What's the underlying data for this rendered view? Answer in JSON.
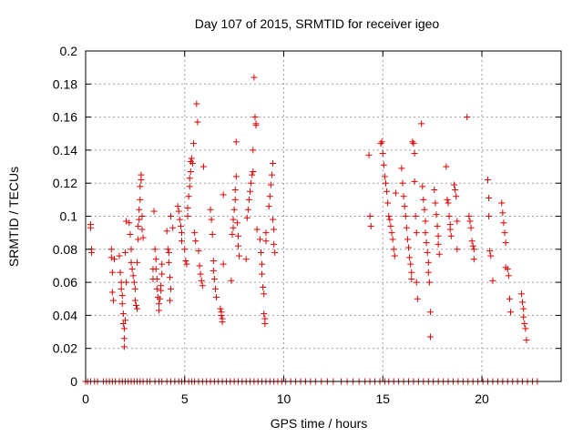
{
  "chart_data": {
    "type": "scatter",
    "title": "Day 107 of 2015, SRMTID for receiver igeo",
    "xlabel": "GPS time / hours",
    "ylabel": "SRMTID / TECUs",
    "xlim": [
      0,
      24
    ],
    "ylim": [
      0,
      0.2
    ],
    "x_ticks": [
      0,
      5,
      10,
      15,
      20
    ],
    "x_tick_labels": [
      "0",
      "5",
      "10",
      "15",
      "20"
    ],
    "y_ticks": [
      0,
      0.02,
      0.04,
      0.06,
      0.08,
      0.1,
      0.12,
      0.14,
      0.16,
      0.18,
      0.2
    ],
    "y_tick_labels": [
      "0",
      "0.02",
      "0.04",
      "0.06",
      "0.08",
      "0.1",
      "0.12",
      "0.14",
      "0.16",
      "0.18",
      "0.2"
    ],
    "grid": true,
    "marker": "+",
    "color": "#dd0000",
    "series": [
      {
        "name": "SRMTID",
        "points": [
          [
            0.25,
            0.095
          ],
          [
            0.25,
            0.093
          ],
          [
            0.3,
            0.08
          ],
          [
            0.3,
            0.078
          ],
          [
            1.3,
            0.08
          ],
          [
            1.3,
            0.075
          ],
          [
            1.35,
            0.066
          ],
          [
            1.35,
            0.054
          ],
          [
            1.4,
            0.049
          ],
          [
            1.45,
            0.074
          ],
          [
            1.7,
            0.076
          ],
          [
            1.75,
            0.066
          ],
          [
            1.8,
            0.06
          ],
          [
            1.8,
            0.056
          ],
          [
            1.85,
            0.052
          ],
          [
            1.85,
            0.047
          ],
          [
            1.9,
            0.041
          ],
          [
            1.9,
            0.035
          ],
          [
            1.95,
            0.032
          ],
          [
            1.95,
            0.026
          ],
          [
            1.95,
            0.021
          ],
          [
            2.0,
            0.037
          ],
          [
            2.05,
            0.06
          ],
          [
            2.0,
            0.078
          ],
          [
            2.05,
            0.097
          ],
          [
            2.2,
            0.096
          ],
          [
            2.25,
            0.089
          ],
          [
            2.3,
            0.08
          ],
          [
            2.3,
            0.072
          ],
          [
            2.35,
            0.068
          ],
          [
            2.4,
            0.064
          ],
          [
            2.45,
            0.06
          ],
          [
            2.5,
            0.056
          ],
          [
            2.5,
            0.049
          ],
          [
            2.55,
            0.046
          ],
          [
            2.6,
            0.044
          ],
          [
            2.6,
            0.072
          ],
          [
            2.65,
            0.086
          ],
          [
            2.65,
            0.094
          ],
          [
            2.7,
            0.098
          ],
          [
            2.7,
            0.104
          ],
          [
            2.75,
            0.11
          ],
          [
            2.75,
            0.118
          ],
          [
            2.8,
            0.125
          ],
          [
            2.8,
            0.122
          ],
          [
            2.85,
            0.1
          ],
          [
            2.85,
            0.092
          ],
          [
            2.9,
            0.087
          ],
          [
            3.4,
            0.062
          ],
          [
            3.4,
            0.068
          ],
          [
            3.45,
            0.103
          ],
          [
            3.5,
            0.08
          ],
          [
            3.55,
            0.074
          ],
          [
            3.55,
            0.068
          ],
          [
            3.6,
            0.062
          ],
          [
            3.6,
            0.056
          ],
          [
            3.65,
            0.051
          ],
          [
            3.7,
            0.047
          ],
          [
            3.7,
            0.043
          ],
          [
            3.75,
            0.05
          ],
          [
            3.8,
            0.055
          ],
          [
            3.8,
            0.058
          ],
          [
            3.85,
            0.071
          ],
          [
            3.85,
            0.065
          ],
          [
            4.1,
            0.091
          ],
          [
            4.15,
            0.08
          ],
          [
            4.2,
            0.078
          ],
          [
            4.2,
            0.072
          ],
          [
            4.25,
            0.063
          ],
          [
            4.3,
            0.056
          ],
          [
            4.25,
            0.049
          ],
          [
            4.3,
            0.1
          ],
          [
            4.4,
            0.093
          ],
          [
            4.65,
            0.106
          ],
          [
            4.7,
            0.103
          ],
          [
            4.75,
            0.098
          ],
          [
            4.8,
            0.094
          ],
          [
            4.85,
            0.09
          ],
          [
            4.85,
            0.085
          ],
          [
            5.0,
            0.08
          ],
          [
            5.05,
            0.073
          ],
          [
            5.1,
            0.071
          ],
          [
            5.15,
            0.1
          ],
          [
            5.15,
            0.105
          ],
          [
            5.2,
            0.112
          ],
          [
            5.25,
            0.118
          ],
          [
            5.25,
            0.123
          ],
          [
            5.3,
            0.127
          ],
          [
            5.3,
            0.133
          ],
          [
            5.35,
            0.135
          ],
          [
            5.4,
            0.132
          ],
          [
            5.45,
            0.144
          ],
          [
            5.5,
            0.09
          ],
          [
            5.55,
            0.085
          ],
          [
            5.6,
            0.168
          ],
          [
            5.65,
            0.157
          ],
          [
            5.7,
            0.079
          ],
          [
            5.75,
            0.07
          ],
          [
            5.8,
            0.065
          ],
          [
            5.85,
            0.061
          ],
          [
            5.9,
            0.058
          ],
          [
            5.95,
            0.13
          ],
          [
            6.3,
            0.104
          ],
          [
            6.35,
            0.098
          ],
          [
            6.4,
            0.089
          ],
          [
            6.45,
            0.073
          ],
          [
            6.45,
            0.067
          ],
          [
            6.5,
            0.062
          ],
          [
            6.55,
            0.056
          ],
          [
            6.6,
            0.051
          ],
          [
            6.8,
            0.044
          ],
          [
            6.85,
            0.042
          ],
          [
            6.85,
            0.04
          ],
          [
            6.9,
            0.038
          ],
          [
            6.9,
            0.036
          ],
          [
            6.95,
            0.113
          ],
          [
            6.95,
            0.071
          ],
          [
            7.35,
            0.061
          ],
          [
            7.4,
            0.089
          ],
          [
            7.45,
            0.093
          ],
          [
            7.45,
            0.098
          ],
          [
            7.5,
            0.104
          ],
          [
            7.55,
            0.11
          ],
          [
            7.55,
            0.116
          ],
          [
            7.6,
            0.124
          ],
          [
            7.6,
            0.145
          ],
          [
            7.65,
            0.096
          ],
          [
            7.7,
            0.088
          ],
          [
            7.7,
            0.082
          ],
          [
            7.75,
            0.076
          ],
          [
            8.1,
            0.074
          ],
          [
            8.15,
            0.099
          ],
          [
            8.2,
            0.104
          ],
          [
            8.25,
            0.11
          ],
          [
            8.3,
            0.115
          ],
          [
            8.35,
            0.12
          ],
          [
            8.4,
            0.125
          ],
          [
            8.45,
            0.14
          ],
          [
            8.45,
            0.127
          ],
          [
            8.5,
            0.184
          ],
          [
            8.55,
            0.16
          ],
          [
            8.6,
            0.156
          ],
          [
            8.6,
            0.155
          ],
          [
            8.65,
            0.092
          ],
          [
            8.8,
            0.086
          ],
          [
            8.85,
            0.078
          ],
          [
            8.9,
            0.071
          ],
          [
            8.9,
            0.065
          ],
          [
            8.95,
            0.057
          ],
          [
            9.0,
            0.053
          ],
          [
            9.0,
            0.041
          ],
          [
            9.05,
            0.038
          ],
          [
            9.05,
            0.035
          ],
          [
            9.1,
            0.09
          ],
          [
            9.1,
            0.085
          ],
          [
            9.25,
            0.106
          ],
          [
            9.3,
            0.112
          ],
          [
            9.35,
            0.119
          ],
          [
            9.4,
            0.125
          ],
          [
            9.45,
            0.132
          ],
          [
            9.45,
            0.098
          ],
          [
            9.5,
            0.092
          ],
          [
            9.5,
            0.083
          ],
          [
            9.55,
            0.078
          ],
          [
            14.3,
            0.137
          ],
          [
            14.35,
            0.1
          ],
          [
            14.4,
            0.094
          ],
          [
            14.9,
            0.144
          ],
          [
            14.95,
            0.145
          ],
          [
            15.0,
            0.138
          ],
          [
            15.05,
            0.131
          ],
          [
            15.1,
            0.124
          ],
          [
            15.15,
            0.12
          ],
          [
            15.2,
            0.115
          ],
          [
            15.25,
            0.108
          ],
          [
            15.3,
            0.1
          ],
          [
            15.35,
            0.098
          ],
          [
            15.4,
            0.094
          ],
          [
            15.45,
            0.09
          ],
          [
            15.5,
            0.086
          ],
          [
            15.55,
            0.08
          ],
          [
            15.6,
            0.076
          ],
          [
            15.65,
            0.114
          ],
          [
            15.95,
            0.129
          ],
          [
            16.0,
            0.12
          ],
          [
            16.05,
            0.112
          ],
          [
            16.1,
            0.106
          ],
          [
            16.15,
            0.1
          ],
          [
            16.2,
            0.093
          ],
          [
            16.25,
            0.086
          ],
          [
            16.3,
            0.081
          ],
          [
            16.35,
            0.075
          ],
          [
            16.4,
            0.071
          ],
          [
            16.45,
            0.066
          ],
          [
            16.45,
            0.062
          ],
          [
            16.5,
            0.145
          ],
          [
            16.55,
            0.144
          ],
          [
            16.6,
            0.138
          ],
          [
            16.6,
            0.121
          ],
          [
            16.65,
            0.1
          ],
          [
            16.7,
            0.09
          ],
          [
            16.7,
            0.06
          ],
          [
            16.75,
            0.05
          ],
          [
            16.95,
            0.156
          ],
          [
            17.0,
            0.118
          ],
          [
            17.05,
            0.11
          ],
          [
            17.1,
            0.104
          ],
          [
            17.15,
            0.097
          ],
          [
            17.15,
            0.09
          ],
          [
            17.2,
            0.084
          ],
          [
            17.25,
            0.078
          ],
          [
            17.3,
            0.072
          ],
          [
            17.3,
            0.066
          ],
          [
            17.35,
            0.06
          ],
          [
            17.4,
            0.042
          ],
          [
            17.4,
            0.027
          ],
          [
            17.6,
            0.116
          ],
          [
            17.65,
            0.108
          ],
          [
            17.7,
            0.101
          ],
          [
            17.75,
            0.094
          ],
          [
            17.8,
            0.088
          ],
          [
            17.8,
            0.083
          ],
          [
            17.85,
            0.077
          ],
          [
            18.2,
            0.13
          ],
          [
            18.25,
            0.11
          ],
          [
            18.3,
            0.108
          ],
          [
            18.35,
            0.1
          ],
          [
            18.4,
            0.095
          ],
          [
            18.4,
            0.092
          ],
          [
            18.45,
            0.088
          ],
          [
            18.6,
            0.119
          ],
          [
            18.65,
            0.116
          ],
          [
            18.7,
            0.112
          ],
          [
            18.75,
            0.097
          ],
          [
            18.75,
            0.08
          ],
          [
            19.25,
            0.16
          ],
          [
            19.35,
            0.1
          ],
          [
            19.4,
            0.097
          ],
          [
            19.45,
            0.093
          ],
          [
            19.5,
            0.085
          ],
          [
            19.55,
            0.082
          ],
          [
            19.6,
            0.08
          ],
          [
            19.6,
            0.074
          ],
          [
            20.3,
            0.122
          ],
          [
            20.35,
            0.111
          ],
          [
            20.35,
            0.1
          ],
          [
            20.4,
            0.079
          ],
          [
            20.45,
            0.076
          ],
          [
            20.55,
            0.061
          ],
          [
            21.0,
            0.108
          ],
          [
            21.05,
            0.102
          ],
          [
            21.1,
            0.096
          ],
          [
            21.15,
            0.09
          ],
          [
            21.2,
            0.084
          ],
          [
            21.2,
            0.069
          ],
          [
            21.3,
            0.068
          ],
          [
            21.35,
            0.064
          ],
          [
            21.4,
            0.05
          ],
          [
            21.45,
            0.042
          ],
          [
            22.0,
            0.053
          ],
          [
            22.05,
            0.048
          ],
          [
            22.1,
            0.044
          ],
          [
            22.1,
            0.039
          ],
          [
            22.15,
            0.035
          ],
          [
            22.2,
            0.032
          ],
          [
            22.25,
            0.025
          ]
        ],
        "baseline_value": 0,
        "baseline_x": [
          0.0,
          0.1,
          0.25,
          0.45,
          0.6,
          0.9,
          1.05,
          1.2,
          1.35,
          1.5,
          1.7,
          1.85,
          2.0,
          2.15,
          2.3,
          2.45,
          2.6,
          2.75,
          2.9,
          3.1,
          3.25,
          3.5,
          3.7,
          3.85,
          4.1,
          4.3,
          4.5,
          4.7,
          4.85,
          5.0,
          5.2,
          5.35,
          5.5,
          5.7,
          5.9,
          6.1,
          6.3,
          6.5,
          6.7,
          6.9,
          7.1,
          7.3,
          7.5,
          7.7,
          7.9,
          8.1,
          8.3,
          8.5,
          8.7,
          8.9,
          9.1,
          9.3,
          9.5,
          9.7,
          9.9,
          10.1,
          10.35,
          10.6,
          10.85,
          11.1,
          11.35,
          11.6,
          11.9,
          12.2,
          12.5,
          12.9,
          13.2,
          13.5,
          13.8,
          14.1,
          14.35,
          14.6,
          14.85,
          15.1,
          15.3,
          15.55,
          15.8,
          16.05,
          16.3,
          16.55,
          16.8,
          17.05,
          17.3,
          17.55,
          17.8,
          18.05,
          18.3,
          18.55,
          18.8,
          19.05,
          19.3,
          19.55,
          19.8,
          20.05,
          20.3,
          20.55,
          20.8,
          21.05,
          21.3,
          21.55,
          21.8,
          22.05,
          22.3,
          22.55,
          22.8
        ]
      }
    ]
  }
}
